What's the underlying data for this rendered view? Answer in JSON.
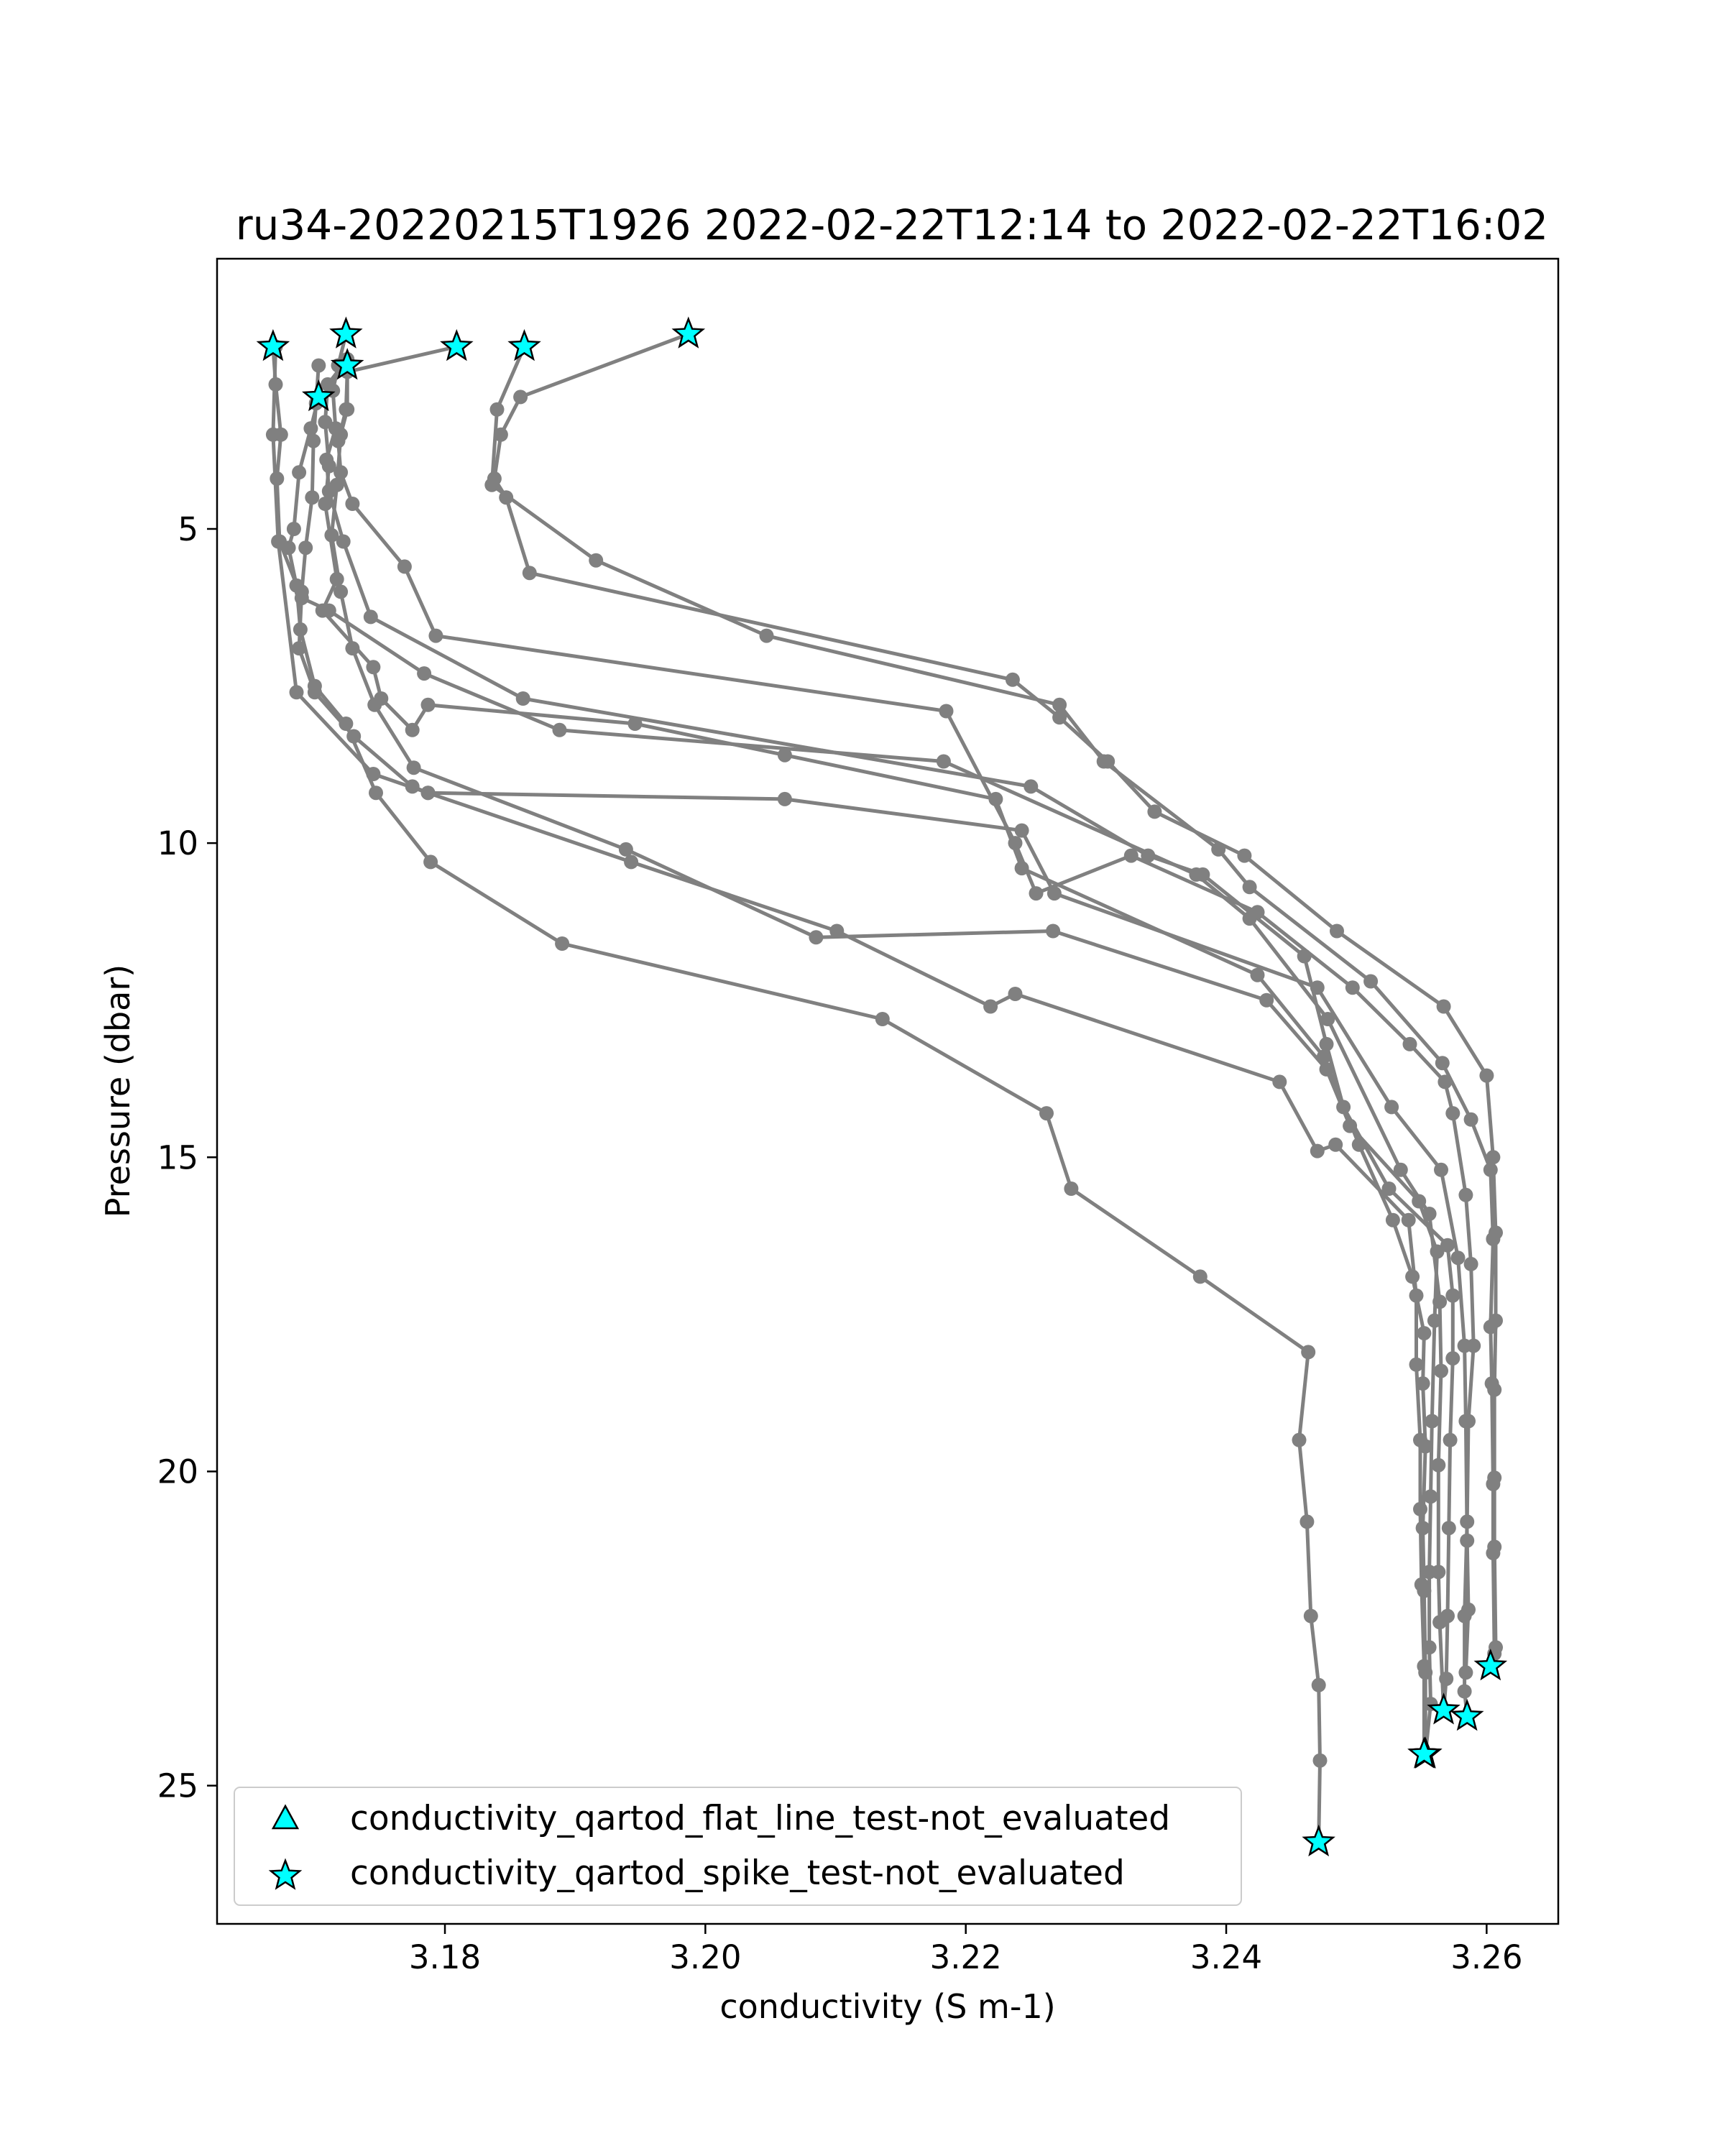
{
  "chart_data": {
    "type": "line",
    "title": "ru34-20220215T1926 2022-02-22T12:14 to 2022-02-22T16:02",
    "xlabel": "conductivity (S m-1)",
    "ylabel": "Pressure (dbar)",
    "xlim": [
      3.1625,
      3.2655
    ],
    "ylim": [
      27.2,
      0.7
    ],
    "y_inverted": true,
    "xticks": [
      3.18,
      3.2,
      3.22,
      3.24,
      3.26
    ],
    "xtick_labels": [
      "3.18",
      "3.20",
      "3.22",
      "3.24",
      "3.26"
    ],
    "yticks": [
      5,
      10,
      15,
      20,
      25
    ],
    "ytick_labels": [
      "5",
      "10",
      "15",
      "20",
      "25"
    ],
    "grid": false,
    "line_color": "#808080",
    "marker_color": "#00ffff",
    "legend": {
      "placement": "lower-left",
      "entries": [
        {
          "label": "conductivity_qartod_flat_line_test-not_evaluated",
          "marker": "triangle"
        },
        {
          "label": "conductivity_qartod_spike_test-not_evaluated",
          "marker": "star"
        }
      ]
    },
    "series": [
      {
        "points": [
          [
            3.1987,
            1.9
          ],
          [
            3.1858,
            2.9
          ],
          [
            3.1843,
            3.5
          ],
          [
            3.1838,
            4.2
          ],
          [
            3.1847,
            4.5
          ],
          [
            3.1865,
            5.7
          ],
          [
            3.2236,
            7.4
          ],
          [
            3.2272,
            8.0
          ],
          [
            3.2309,
            8.7
          ],
          [
            3.2345,
            9.5
          ],
          [
            3.2414,
            10.2
          ],
          [
            3.2485,
            11.4
          ],
          [
            3.2567,
            12.6
          ],
          [
            3.26,
            13.7
          ],
          [
            3.2605,
            15.0
          ],
          [
            3.2607,
            16.2
          ],
          [
            3.2607,
            17.6
          ],
          [
            3.2606,
            18.7
          ],
          [
            3.2606,
            20.1
          ],
          [
            3.2606,
            21.2
          ],
          [
            3.2607,
            22.8
          ],
          [
            3.2603,
            23.1
          ]
        ],
        "spike_start": true,
        "spike_end": true
      },
      {
        "points": [
          [
            3.1861,
            2.1
          ],
          [
            3.184,
            3.1
          ],
          [
            3.1836,
            4.3
          ],
          [
            3.1916,
            5.5
          ],
          [
            3.2047,
            6.7
          ],
          [
            3.2272,
            7.8
          ],
          [
            3.2306,
            8.7
          ],
          [
            3.2394,
            10.1
          ],
          [
            3.2418,
            10.7
          ],
          [
            3.2511,
            12.2
          ],
          [
            3.2566,
            13.5
          ],
          [
            3.2588,
            14.4
          ],
          [
            3.2603,
            15.2
          ],
          [
            3.2605,
            16.3
          ],
          [
            3.2603,
            17.7
          ],
          [
            3.2604,
            18.6
          ],
          [
            3.2605,
            20.2
          ],
          [
            3.2605,
            21.3
          ],
          [
            3.2606,
            22.9
          ],
          [
            3.2603,
            23.1
          ]
        ],
        "spike_start": true,
        "spike_end": false
      },
      {
        "points": [
          [
            3.1809,
            2.1
          ],
          [
            3.1725,
            2.5
          ],
          [
            3.1724,
            3.1
          ],
          [
            3.1718,
            3.6
          ],
          [
            3.172,
            4.1
          ],
          [
            3.1729,
            4.6
          ],
          [
            3.1769,
            5.6
          ],
          [
            3.1793,
            6.7
          ],
          [
            3.2185,
            7.9
          ],
          [
            3.2238,
            10.0
          ],
          [
            3.2254,
            10.8
          ],
          [
            3.2327,
            10.2
          ],
          [
            3.2424,
            11.1
          ],
          [
            3.2497,
            12.3
          ],
          [
            3.2541,
            13.2
          ],
          [
            3.2568,
            13.8
          ],
          [
            3.2574,
            14.3
          ],
          [
            3.2584,
            15.6
          ],
          [
            3.2588,
            16.7
          ],
          [
            3.259,
            18.0
          ],
          [
            3.2586,
            19.2
          ],
          [
            3.2585,
            20.8
          ],
          [
            3.2583,
            22.3
          ],
          [
            3.2583,
            23.5
          ],
          [
            3.2585,
            23.9
          ]
        ],
        "spike_start": true,
        "spike_end": true
      },
      {
        "points": [
          [
            3.1724,
            1.9
          ],
          [
            3.1718,
            2.4
          ],
          [
            3.1714,
            2.8
          ],
          [
            3.1716,
            3.4
          ],
          [
            3.1709,
            3.9
          ],
          [
            3.1711,
            4.4
          ],
          [
            3.1722,
            5.2
          ],
          [
            3.1743,
            6.4
          ],
          [
            3.186,
            7.7
          ],
          [
            3.225,
            9.1
          ],
          [
            3.234,
            10.2
          ],
          [
            3.2382,
            10.5
          ],
          [
            3.246,
            11.8
          ],
          [
            3.2477,
            13.2
          ],
          [
            3.249,
            14.2
          ],
          [
            3.2525,
            15.5
          ],
          [
            3.257,
            16.4
          ],
          [
            3.2574,
            17.2
          ],
          [
            3.2574,
            18.2
          ],
          [
            3.2572,
            19.5
          ],
          [
            3.2571,
            20.9
          ],
          [
            3.257,
            22.3
          ],
          [
            3.2569,
            23.3
          ],
          [
            3.2567,
            23.8
          ]
        ],
        "spike_start": true,
        "spike_end": true
      },
      {
        "points": [
          [
            3.1668,
            2.1
          ],
          [
            3.167,
            2.7
          ],
          [
            3.1674,
            3.5
          ],
          [
            3.1671,
            4.2
          ],
          [
            3.1673,
            5.2
          ],
          [
            3.169,
            6.1
          ],
          [
            3.1711,
            6.3
          ],
          [
            3.1784,
            7.3
          ],
          [
            3.1888,
            8.2
          ],
          [
            3.2183,
            8.7
          ],
          [
            3.2377,
            10.5
          ],
          [
            3.2418,
            11.2
          ],
          [
            3.2478,
            12.8
          ],
          [
            3.2534,
            15.2
          ],
          [
            3.2556,
            15.9
          ],
          [
            3.2564,
            17.3
          ],
          [
            3.2565,
            18.4
          ],
          [
            3.2563,
            19.9
          ],
          [
            3.2563,
            21.6
          ],
          [
            3.2564,
            22.4
          ],
          [
            3.2567,
            23.8
          ]
        ],
        "spike_start": true,
        "spike_end": false
      },
      {
        "points": [
          [
            3.1725,
            2.3
          ],
          [
            3.171,
            2.7
          ],
          [
            3.1708,
            3.3
          ],
          [
            3.1711,
            4.0
          ],
          [
            3.1708,
            4.6
          ],
          [
            3.1717,
            5.8
          ],
          [
            3.1706,
            6.3
          ],
          [
            3.1745,
            7.2
          ],
          [
            3.1751,
            7.7
          ],
          [
            3.1775,
            8.2
          ],
          [
            3.1787,
            7.8
          ],
          [
            3.1946,
            8.1
          ],
          [
            3.2061,
            8.6
          ],
          [
            3.2223,
            9.3
          ],
          [
            3.2243,
            10.4
          ],
          [
            3.2424,
            12.1
          ],
          [
            3.2475,
            13.4
          ],
          [
            3.2502,
            14.8
          ],
          [
            3.2528,
            16.0
          ],
          [
            3.2543,
            16.9
          ],
          [
            3.2552,
            17.8
          ],
          [
            3.2551,
            18.6
          ],
          [
            3.2553,
            19.6
          ],
          [
            3.2551,
            20.9
          ],
          [
            3.2552,
            21.9
          ],
          [
            3.2553,
            23.2
          ],
          [
            3.2553,
            24.5
          ]
        ],
        "spike_start": false,
        "spike_end": true
      },
      {
        "points": [
          [
            3.1725,
            2.4
          ],
          [
            3.1725,
            3.1
          ],
          [
            3.172,
            3.5
          ],
          [
            3.1717,
            4.3
          ],
          [
            3.1713,
            5.1
          ],
          [
            3.172,
            6.0
          ],
          [
            3.1729,
            6.9
          ],
          [
            3.1746,
            7.8
          ],
          [
            3.1776,
            8.8
          ],
          [
            3.1939,
            10.1
          ],
          [
            3.2085,
            11.5
          ],
          [
            3.2267,
            11.4
          ],
          [
            3.2431,
            12.5
          ],
          [
            3.2477,
            13.6
          ],
          [
            3.2495,
            14.5
          ],
          [
            3.2548,
            15.7
          ],
          [
            3.2562,
            16.5
          ],
          [
            3.256,
            17.6
          ],
          [
            3.2558,
            19.2
          ],
          [
            3.2557,
            20.4
          ],
          [
            3.2556,
            21.6
          ],
          [
            3.2556,
            22.8
          ],
          [
            3.2557,
            23.7
          ],
          [
            3.2553,
            24.5
          ]
        ],
        "spike_start": true,
        "spike_end": true
      },
      {
        "points": [
          [
            3.1703,
            2.4
          ],
          [
            3.1701,
            3.0
          ],
          [
            3.1699,
            3.6
          ],
          [
            3.1698,
            4.5
          ],
          [
            3.1693,
            5.3
          ],
          [
            3.169,
            6.0
          ],
          [
            3.1688,
            6.9
          ],
          [
            3.17,
            7.6
          ],
          [
            3.173,
            8.3
          ],
          [
            3.1775,
            9.1
          ],
          [
            3.1787,
            9.2
          ],
          [
            3.1943,
            10.3
          ],
          [
            3.2101,
            11.4
          ],
          [
            3.2219,
            12.6
          ],
          [
            3.2238,
            12.4
          ],
          [
            3.2441,
            13.8
          ],
          [
            3.247,
            14.9
          ],
          [
            3.2484,
            14.8
          ],
          [
            3.254,
            16.0
          ],
          [
            3.2546,
            17.2
          ],
          [
            3.2546,
            18.3
          ],
          [
            3.2549,
            19.5
          ],
          [
            3.2549,
            20.6
          ],
          [
            3.255,
            21.8
          ],
          [
            3.2552,
            23.1
          ],
          [
            3.2552,
            24.5
          ]
        ],
        "spike_start": false,
        "spike_end": true
      },
      {
        "points": [
          [
            3.1703,
            2.9
          ],
          [
            3.1697,
            3.4
          ],
          [
            3.1688,
            4.1
          ],
          [
            3.1684,
            5.0
          ],
          [
            3.168,
            5.3
          ],
          [
            3.1686,
            5.9
          ],
          [
            3.1689,
            6.6
          ],
          [
            3.17,
            7.5
          ],
          [
            3.1724,
            8.1
          ],
          [
            3.1747,
            9.2
          ],
          [
            3.1789,
            10.3
          ],
          [
            3.189,
            11.6
          ],
          [
            3.2136,
            12.8
          ],
          [
            3.2262,
            14.3
          ],
          [
            3.2281,
            15.5
          ],
          [
            3.238,
            16.9
          ],
          [
            3.2463,
            18.1
          ],
          [
            3.2456,
            19.5
          ],
          [
            3.2462,
            20.8
          ],
          [
            3.2465,
            22.3
          ],
          [
            3.2471,
            23.4
          ],
          [
            3.2472,
            24.6
          ],
          [
            3.2471,
            25.9
          ]
        ],
        "spike_start": true,
        "spike_end": true
      },
      {
        "points": [
          [
            3.167,
            2.1
          ],
          [
            3.1668,
            3.5
          ],
          [
            3.1672,
            5.2
          ],
          [
            3.1686,
            7.6
          ],
          [
            3.1745,
            8.9
          ],
          [
            3.1787,
            9.2
          ],
          [
            3.2061,
            9.3
          ],
          [
            3.2243,
            9.8
          ],
          [
            3.2268,
            10.8
          ],
          [
            3.247,
            12.3
          ],
          [
            3.2527,
            14.2
          ],
          [
            3.2565,
            15.2
          ],
          [
            3.2578,
            16.6
          ],
          [
            3.2583,
            18.0
          ],
          [
            3.2584,
            19.2
          ],
          [
            3.2585,
            21.1
          ],
          [
            3.2586,
            22.2
          ],
          [
            3.2584,
            23.2
          ]
        ],
        "spike_start": false,
        "spike_end": false
      }
    ]
  }
}
